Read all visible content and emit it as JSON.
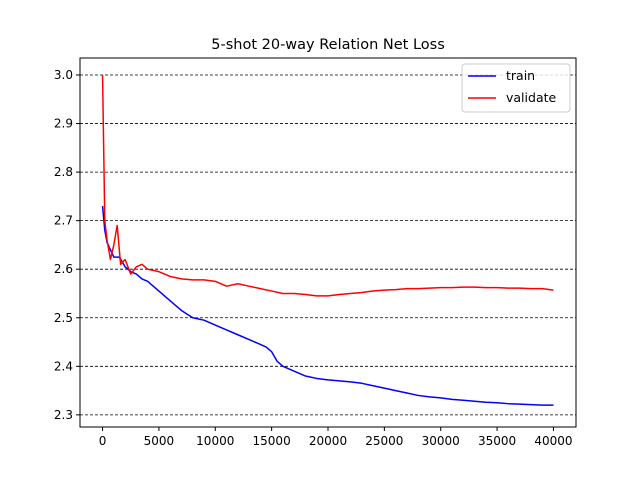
{
  "chart_data": {
    "type": "line",
    "title": "5-shot 20-way Relation Net Loss",
    "xlabel": "",
    "ylabel": "",
    "xlim": [
      -2000,
      42000
    ],
    "ylim": [
      2.275,
      3.035
    ],
    "x_ticks": [
      0,
      5000,
      10000,
      15000,
      20000,
      25000,
      30000,
      35000,
      40000
    ],
    "y_ticks": [
      2.3,
      2.4,
      2.5,
      2.6,
      2.7,
      2.8,
      2.9,
      3.0
    ],
    "y_tick_labels": [
      "2.3",
      "2.4",
      "2.5",
      "2.6",
      "2.7",
      "2.8",
      "2.9",
      "3.0"
    ],
    "grid": "horizontal dashed",
    "legend_position": "top-right",
    "series": [
      {
        "name": "train",
        "color": "#0000ff",
        "x": [
          0,
          200,
          400,
          700,
          1000,
          1500,
          2000,
          2500,
          3000,
          3500,
          4000,
          5000,
          6000,
          7000,
          8000,
          9000,
          10000,
          11000,
          12000,
          13000,
          14000,
          14500,
          15000,
          15500,
          16000,
          17000,
          18000,
          19000,
          20000,
          21000,
          22000,
          23000,
          24000,
          25000,
          26000,
          27000,
          28000,
          29000,
          30000,
          31000,
          32000,
          33000,
          34000,
          35000,
          36000,
          37000,
          38000,
          39000,
          40000
        ],
        "values": [
          2.73,
          2.68,
          2.655,
          2.64,
          2.625,
          2.625,
          2.605,
          2.595,
          2.59,
          2.58,
          2.575,
          2.555,
          2.535,
          2.515,
          2.5,
          2.495,
          2.485,
          2.475,
          2.465,
          2.455,
          2.445,
          2.44,
          2.43,
          2.41,
          2.4,
          2.39,
          2.38,
          2.375,
          2.372,
          2.37,
          2.368,
          2.365,
          2.36,
          2.355,
          2.35,
          2.345,
          2.34,
          2.337,
          2.335,
          2.332,
          2.33,
          2.328,
          2.326,
          2.325,
          2.323,
          2.322,
          2.321,
          2.32,
          2.32
        ]
      },
      {
        "name": "validate",
        "color": "#ff0000",
        "x": [
          0,
          200,
          400,
          700,
          1000,
          1300,
          1600,
          2000,
          2500,
          3000,
          3500,
          4000,
          5000,
          6000,
          7000,
          8000,
          9000,
          10000,
          11000,
          12000,
          13000,
          14000,
          15000,
          16000,
          17000,
          18000,
          19000,
          20000,
          21000,
          22000,
          23000,
          24000,
          25000,
          26000,
          27000,
          28000,
          29000,
          30000,
          31000,
          32000,
          33000,
          34000,
          35000,
          36000,
          37000,
          38000,
          39000,
          40000
        ],
        "values": [
          3.0,
          2.7,
          2.66,
          2.62,
          2.65,
          2.69,
          2.61,
          2.62,
          2.59,
          2.605,
          2.61,
          2.6,
          2.595,
          2.585,
          2.58,
          2.578,
          2.578,
          2.575,
          2.565,
          2.57,
          2.565,
          2.56,
          2.555,
          2.55,
          2.55,
          2.548,
          2.545,
          2.545,
          2.548,
          2.55,
          2.552,
          2.555,
          2.557,
          2.558,
          2.56,
          2.56,
          2.561,
          2.562,
          2.562,
          2.563,
          2.563,
          2.562,
          2.562,
          2.561,
          2.561,
          2.56,
          2.56,
          2.557
        ]
      }
    ]
  }
}
